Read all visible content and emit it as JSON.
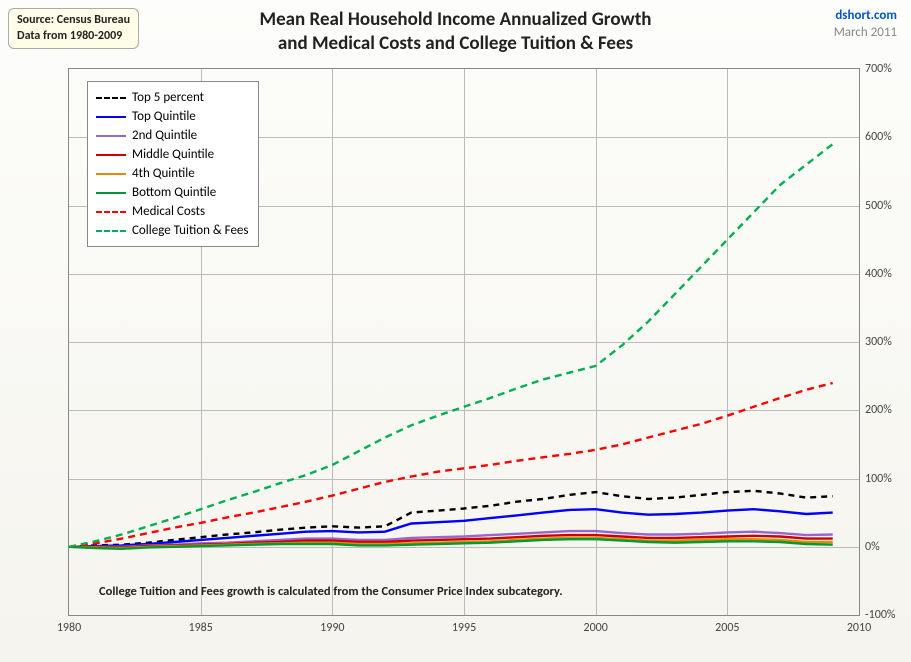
{
  "source_box": {
    "line1": "Source: Census Bureau",
    "line2": "Data from 1980-2009"
  },
  "attribution": {
    "site": "dshort.com",
    "date": "March 2011"
  },
  "title": {
    "line1": "Mean Real Household Income Annualized Growth",
    "line2": "and Medical Costs and College Tuition & Fees"
  },
  "chart": {
    "type": "line",
    "xlim": [
      1980,
      2010
    ],
    "ylim": [
      -100,
      700
    ],
    "xtick_step": 5,
    "ytick_step": 100,
    "xticks": [
      1980,
      1985,
      1990,
      1995,
      2000,
      2005,
      2010
    ],
    "yticks": [
      -100,
      0,
      100,
      200,
      300,
      400,
      500,
      600,
      700
    ],
    "ytick_format": "percent",
    "plot_border_color": "#888888",
    "grid_color": "#bbbbbb",
    "background_color": "transparent",
    "title_fontsize": 19,
    "label_fontsize": 12,
    "line_width": 2.4,
    "series": [
      {
        "name": "Top 5 percent",
        "color": "#000000",
        "dash": "6,5",
        "x": [
          1980,
          1981,
          1982,
          1983,
          1984,
          1985,
          1986,
          1987,
          1988,
          1989,
          1990,
          1991,
          1992,
          1993,
          1994,
          1995,
          1996,
          1997,
          1998,
          1999,
          2000,
          2001,
          2002,
          2003,
          2004,
          2005,
          2006,
          2007,
          2008,
          2009
        ],
        "y": [
          0,
          2,
          3,
          6,
          10,
          14,
          18,
          21,
          25,
          28,
          30,
          28,
          30,
          50,
          53,
          56,
          60,
          66,
          70,
          76,
          80,
          74,
          70,
          72,
          76,
          80,
          82,
          78,
          72,
          74
        ]
      },
      {
        "name": "Top Quintile",
        "color": "#0000ff",
        "dash": null,
        "x": [
          1980,
          1981,
          1982,
          1983,
          1984,
          1985,
          1986,
          1987,
          1988,
          1989,
          1990,
          1991,
          1992,
          1993,
          1994,
          1995,
          1996,
          1997,
          1998,
          1999,
          2000,
          2001,
          2002,
          2003,
          2004,
          2005,
          2006,
          2007,
          2008,
          2009
        ],
        "y": [
          0,
          1,
          2,
          4,
          7,
          10,
          13,
          16,
          19,
          22,
          23,
          21,
          22,
          34,
          36,
          38,
          42,
          46,
          50,
          54,
          55,
          50,
          47,
          48,
          50,
          53,
          55,
          52,
          48,
          50
        ]
      },
      {
        "name": "2nd Quintile",
        "color": "#9966cc",
        "dash": null,
        "x": [
          1980,
          1981,
          1982,
          1983,
          1984,
          1985,
          1986,
          1987,
          1988,
          1989,
          1990,
          1991,
          1992,
          1993,
          1994,
          1995,
          1996,
          1997,
          1998,
          1999,
          2000,
          2001,
          2002,
          2003,
          2004,
          2005,
          2006,
          2007,
          2008,
          2009
        ],
        "y": [
          0,
          0,
          0,
          2,
          3,
          5,
          6,
          8,
          10,
          12,
          12,
          10,
          10,
          13,
          14,
          15,
          17,
          19,
          21,
          23,
          23,
          20,
          18,
          18,
          19,
          21,
          22,
          20,
          17,
          18
        ]
      },
      {
        "name": "Middle Quintile",
        "color": "#cc0000",
        "dash": null,
        "x": [
          1980,
          1981,
          1982,
          1983,
          1984,
          1985,
          1986,
          1987,
          1988,
          1989,
          1990,
          1991,
          1992,
          1993,
          1994,
          1995,
          1996,
          1997,
          1998,
          1999,
          2000,
          2001,
          2002,
          2003,
          2004,
          2005,
          2006,
          2007,
          2008,
          2009
        ],
        "y": [
          0,
          0,
          -1,
          1,
          2,
          3,
          4,
          6,
          7,
          9,
          9,
          7,
          7,
          9,
          10,
          11,
          12,
          14,
          16,
          17,
          17,
          15,
          13,
          13,
          14,
          15,
          16,
          15,
          12,
          12
        ]
      },
      {
        "name": "4th Quintile",
        "color": "#e68a00",
        "dash": null,
        "x": [
          1980,
          1981,
          1982,
          1983,
          1984,
          1985,
          1986,
          1987,
          1988,
          1989,
          1990,
          1991,
          1992,
          1993,
          1994,
          1995,
          1996,
          1997,
          1998,
          1999,
          2000,
          2001,
          2002,
          2003,
          2004,
          2005,
          2006,
          2007,
          2008,
          2009
        ],
        "y": [
          0,
          -1,
          -2,
          0,
          1,
          2,
          3,
          4,
          5,
          6,
          6,
          4,
          4,
          5,
          6,
          7,
          8,
          10,
          12,
          13,
          13,
          11,
          9,
          9,
          10,
          11,
          11,
          10,
          7,
          7
        ]
      },
      {
        "name": "Bottom Quintile",
        "color": "#009933",
        "dash": null,
        "x": [
          1980,
          1981,
          1982,
          1983,
          1984,
          1985,
          1986,
          1987,
          1988,
          1989,
          1990,
          1991,
          1992,
          1993,
          1994,
          1995,
          1996,
          1997,
          1998,
          1999,
          2000,
          2001,
          2002,
          2003,
          2004,
          2005,
          2006,
          2007,
          2008,
          2009
        ],
        "y": [
          0,
          -2,
          -3,
          -1,
          0,
          1,
          2,
          3,
          4,
          4,
          4,
          2,
          2,
          3,
          4,
          5,
          6,
          8,
          10,
          11,
          11,
          9,
          7,
          6,
          7,
          8,
          8,
          7,
          4,
          3
        ]
      },
      {
        "name": "Medical Costs",
        "color": "#ff0000",
        "dash": "7,5",
        "x": [
          1980,
          1981,
          1982,
          1983,
          1984,
          1985,
          1986,
          1987,
          1988,
          1989,
          1990,
          1991,
          1992,
          1993,
          1994,
          1995,
          1996,
          1997,
          1998,
          1999,
          2000,
          2001,
          2002,
          2003,
          2004,
          2005,
          2006,
          2007,
          2008,
          2009
        ],
        "y": [
          0,
          5,
          12,
          20,
          28,
          35,
          43,
          50,
          58,
          66,
          75,
          85,
          95,
          103,
          110,
          115,
          120,
          126,
          131,
          136,
          142,
          150,
          160,
          170,
          180,
          192,
          205,
          218,
          230,
          240
        ]
      },
      {
        "name": "College Tuition & Fees",
        "color": "#00b050",
        "dash": "7,5",
        "x": [
          1980,
          1981,
          1982,
          1983,
          1984,
          1985,
          1986,
          1987,
          1988,
          1989,
          1990,
          1991,
          1992,
          1993,
          1994,
          1995,
          1996,
          1997,
          1998,
          1999,
          2000,
          2001,
          2002,
          2003,
          2004,
          2005,
          2006,
          2007,
          2008,
          2009
        ],
        "y": [
          0,
          8,
          18,
          30,
          42,
          55,
          68,
          80,
          93,
          105,
          120,
          140,
          160,
          178,
          192,
          205,
          218,
          232,
          245,
          255,
          265,
          295,
          330,
          370,
          410,
          450,
          490,
          530,
          560,
          590
        ]
      }
    ],
    "legend": {
      "position": "top-left",
      "border_color": "#888888",
      "background_color": "#ffffff",
      "fontsize": 13
    },
    "footnote": {
      "text": "College Tuition and Fees growth is calculated from the Consumer Price Index subcategory.",
      "fontsize": 12.5,
      "fontweight": "bold"
    }
  }
}
